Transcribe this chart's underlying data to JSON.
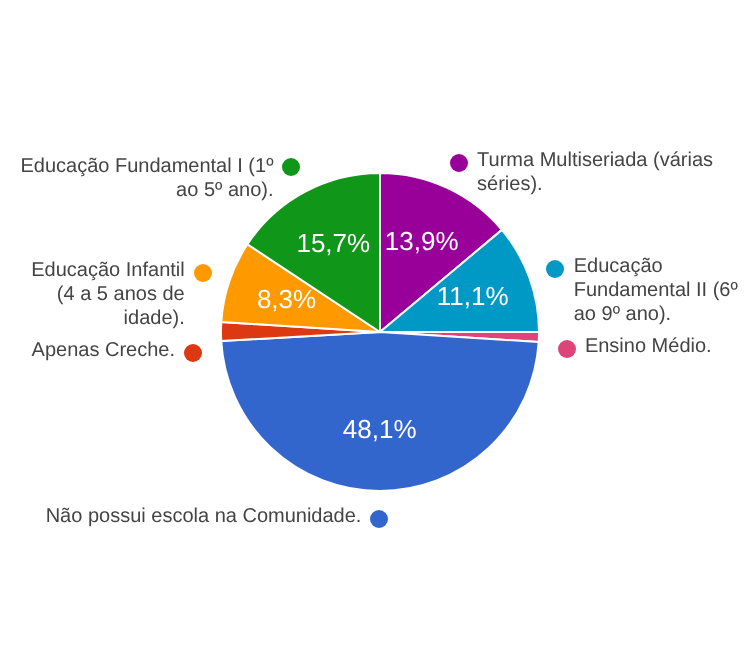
{
  "chart_data": {
    "type": "pie",
    "legend": "left",
    "categories": [
      "Turma Multiseriada (várias séries).",
      "Educação Fundamental II (6º ao 9º ano).",
      "Ensino Médio.",
      "Não possui escola na Comunidade.",
      "Apenas Creche.",
      "Educação Infantil (4 a 5 anos de idade).",
      "Educação Fundamental I (1º ao 5º ano)."
    ],
    "values": [
      13.9,
      11.1,
      1.0,
      48.1,
      1.9,
      8.3,
      15.7
    ],
    "colors": [
      "#990099",
      "#0099c6",
      "#dd4477",
      "#3366cc",
      "#dc3912",
      "#ff9900",
      "#109618"
    ],
    "value_labels": [
      "13,9%",
      "11,1%",
      null,
      "48,1%",
      null,
      "8,3%",
      "15,7%"
    ]
  }
}
